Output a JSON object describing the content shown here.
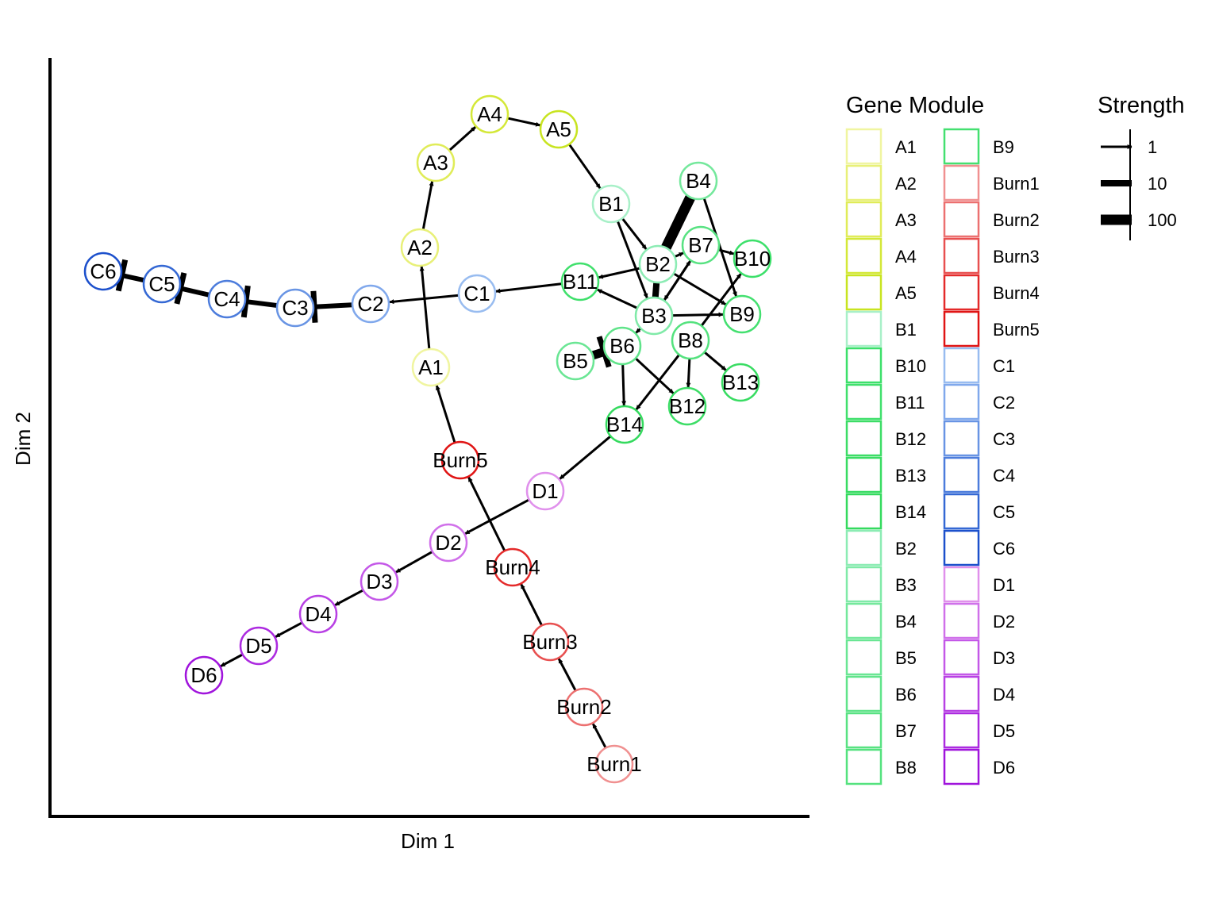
{
  "axes": {
    "x_label": "Dim 1",
    "y_label": "Dim 2"
  },
  "legend": {
    "module_title": "Gene Module",
    "strength_title": "Strength",
    "strength_levels": [
      "1",
      "10",
      "100"
    ]
  },
  "chart_data": {
    "type": "network",
    "node_colors": {
      "A1": "#f0f5a0",
      "A2": "#e8f078",
      "A3": "#e0ec58",
      "A4": "#d4e838",
      "A5": "#c8e420",
      "B1": "#a8f0c8",
      "B2": "#8cecb4",
      "B3": "#80eaa8",
      "B4": "#74e89c",
      "B5": "#6ae694",
      "B6": "#60e48a",
      "B7": "#58e282",
      "B8": "#54e27e",
      "B9": "#44e070",
      "B10": "#3ce06a",
      "B11": "#40e06c",
      "B12": "#3cdd66",
      "B13": "#38dc62",
      "B14": "#34da5e",
      "Burn1": "#f09090",
      "Burn2": "#ec7070",
      "Burn3": "#e85050",
      "Burn4": "#e42a2a",
      "Burn5": "#e01414",
      "C1": "#98bcf0",
      "C2": "#80a8ec",
      "C3": "#6894e4",
      "C4": "#4c7cdc",
      "C5": "#3468d4",
      "C6": "#1c50cc",
      "D1": "#e090ec",
      "D2": "#d070ea",
      "D3": "#c458e8",
      "D4": "#b840e4",
      "D5": "#ac2ae0",
      "D6": "#a014dc"
    },
    "legend_order": [
      "A1",
      "A2",
      "A3",
      "A4",
      "A5",
      "B1",
      "B10",
      "B11",
      "B12",
      "B13",
      "B14",
      "B2",
      "B3",
      "B4",
      "B5",
      "B6",
      "B7",
      "B8",
      "B9",
      "Burn1",
      "Burn2",
      "Burn3",
      "Burn4",
      "Burn5",
      "C1",
      "C2",
      "C3",
      "C4",
      "C5",
      "C6",
      "D1",
      "D2",
      "D3",
      "D4",
      "D5",
      "D6"
    ],
    "edges": [
      {
        "from": "Burn1",
        "to": "Burn2",
        "type": "activation",
        "strength": 1
      },
      {
        "from": "Burn2",
        "to": "Burn3",
        "type": "activation",
        "strength": 1
      },
      {
        "from": "Burn3",
        "to": "Burn4",
        "type": "activation",
        "strength": 1
      },
      {
        "from": "Burn4",
        "to": "Burn5",
        "type": "activation",
        "strength": 1
      },
      {
        "from": "Burn5",
        "to": "A1",
        "type": "activation",
        "strength": 1
      },
      {
        "from": "A1",
        "to": "A2",
        "type": "activation",
        "strength": 1
      },
      {
        "from": "A2",
        "to": "A3",
        "type": "activation",
        "strength": 1
      },
      {
        "from": "A3",
        "to": "A4",
        "type": "activation",
        "strength": 1
      },
      {
        "from": "A4",
        "to": "A5",
        "type": "activation",
        "strength": 1
      },
      {
        "from": "A5",
        "to": "B1",
        "type": "activation",
        "strength": 1
      },
      {
        "from": "B1",
        "to": "B2",
        "type": "activation",
        "strength": 1
      },
      {
        "from": "B1",
        "to": "B3",
        "type": "activation",
        "strength": 1
      },
      {
        "from": "B2",
        "to": "B4",
        "type": "activation",
        "strength": 100
      },
      {
        "from": "B4",
        "to": "B2",
        "type": "activation",
        "strength": 100
      },
      {
        "from": "B2",
        "to": "B7",
        "type": "activation",
        "strength": 1
      },
      {
        "from": "B2",
        "to": "B11",
        "type": "activation",
        "strength": 1
      },
      {
        "from": "B2",
        "to": "B9",
        "type": "activation",
        "strength": 1
      },
      {
        "from": "B7",
        "to": "B10",
        "type": "activation",
        "strength": 1
      },
      {
        "from": "B7",
        "to": "B3",
        "type": "activation",
        "strength": 1
      },
      {
        "from": "B3",
        "to": "B2",
        "type": "activation",
        "strength": 10
      },
      {
        "from": "B3",
        "to": "B11",
        "type": "activation",
        "strength": 1
      },
      {
        "from": "B3",
        "to": "B7",
        "type": "activation",
        "strength": 1
      },
      {
        "from": "B3",
        "to": "B9",
        "type": "activation",
        "strength": 1
      },
      {
        "from": "B3",
        "to": "B6",
        "type": "activation",
        "strength": 1
      },
      {
        "from": "B4",
        "to": "B9",
        "type": "activation",
        "strength": 1
      },
      {
        "from": "B8",
        "to": "B10",
        "type": "activation",
        "strength": 1
      },
      {
        "from": "B8",
        "to": "B13",
        "type": "activation",
        "strength": 1
      },
      {
        "from": "B8",
        "to": "B12",
        "type": "activation",
        "strength": 1
      },
      {
        "from": "B8",
        "to": "B14",
        "type": "activation",
        "strength": 1
      },
      {
        "from": "B6",
        "to": "B12",
        "type": "activation",
        "strength": 1
      },
      {
        "from": "B6",
        "to": "B14",
        "type": "activation",
        "strength": 1
      },
      {
        "from": "B5",
        "to": "B6",
        "type": "inhibition",
        "strength": 10
      },
      {
        "from": "B11",
        "to": "C1",
        "type": "activation",
        "strength": 1
      },
      {
        "from": "C1",
        "to": "C2",
        "type": "activation",
        "strength": 1
      },
      {
        "from": "C2",
        "to": "C3",
        "type": "inhibition",
        "strength": 1
      },
      {
        "from": "C3",
        "to": "C4",
        "type": "inhibition",
        "strength": 1
      },
      {
        "from": "C4",
        "to": "C5",
        "type": "inhibition",
        "strength": 1
      },
      {
        "from": "C5",
        "to": "C6",
        "type": "inhibition",
        "strength": 1
      },
      {
        "from": "B14",
        "to": "D1",
        "type": "activation",
        "strength": 1
      },
      {
        "from": "D1",
        "to": "D2",
        "type": "activation",
        "strength": 1
      },
      {
        "from": "D2",
        "to": "D3",
        "type": "activation",
        "strength": 1
      },
      {
        "from": "D3",
        "to": "D4",
        "type": "activation",
        "strength": 1
      },
      {
        "from": "D4",
        "to": "D5",
        "type": "activation",
        "strength": 1
      },
      {
        "from": "D5",
        "to": "D6",
        "type": "activation",
        "strength": 1
      }
    ]
  }
}
